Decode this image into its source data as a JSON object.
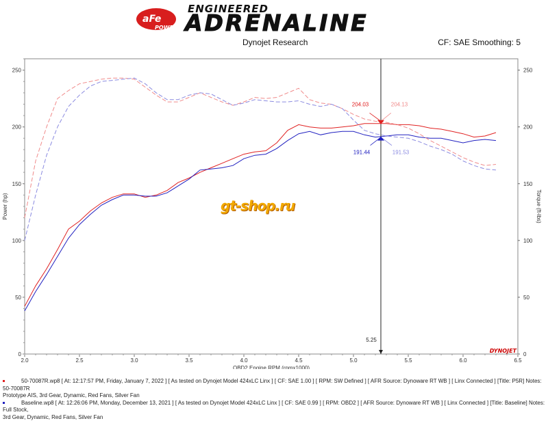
{
  "header": {
    "brand_small": "aFe",
    "brand_power": "POWER",
    "brand_top": "ENGINEERED",
    "brand_main": "ADRENALINE",
    "subtitle_left": "Dynojet Research",
    "subtitle_right": "CF: SAE Smoothing: 5"
  },
  "watermark": "gt-shop.ru",
  "dynojet_logo": "DYNOJET",
  "chart_data": {
    "type": "line",
    "xlabel": "OBD2 Engine RPM (rpmx1000)",
    "ylabel_left": "Power (hp)",
    "ylabel_right": "Torque (ft-lbs)",
    "xlim": [
      2.0,
      6.5
    ],
    "ylim": [
      0,
      260
    ],
    "x_ticks": [
      "2.0",
      "2.5",
      "3.0",
      "3.5",
      "4.0",
      "4.5",
      "5.0",
      "5.5",
      "6.0",
      "6.5"
    ],
    "y_ticks": [
      "0",
      "50",
      "100",
      "150",
      "200",
      "250"
    ],
    "cursor": {
      "x": 5.25,
      "label": "5.25"
    },
    "annotations": [
      {
        "text": "204.03",
        "color": "#e02020"
      },
      {
        "text": "204.13",
        "color": "#f08a8a"
      },
      {
        "text": "191.44",
        "color": "#2020c0"
      },
      {
        "text": "191.53",
        "color": "#8a8ae0"
      }
    ],
    "series": [
      {
        "name": "50-70087R",
        "kind": "power",
        "color": "#e02020",
        "dashed": false,
        "x": [
          2.0,
          2.1,
          2.2,
          2.3,
          2.4,
          2.5,
          2.6,
          2.7,
          2.8,
          2.9,
          3.0,
          3.1,
          3.2,
          3.3,
          3.4,
          3.5,
          3.6,
          3.7,
          3.8,
          3.9,
          4.0,
          4.1,
          4.2,
          4.3,
          4.4,
          4.5,
          4.6,
          4.7,
          4.8,
          4.9,
          5.0,
          5.1,
          5.2,
          5.3,
          5.4,
          5.5,
          5.6,
          5.7,
          5.8,
          5.9,
          6.0,
          6.1,
          6.2,
          6.3
        ],
        "values": [
          42,
          60,
          75,
          92,
          110,
          117,
          126,
          133,
          138,
          141,
          141,
          138,
          140,
          144,
          151,
          155,
          160,
          164,
          168,
          172,
          176,
          178,
          179,
          186,
          197,
          202,
          200,
          199,
          199,
          200,
          201,
          203,
          203,
          203,
          202,
          202,
          201,
          199,
          198,
          196,
          194,
          191,
          192,
          195
        ]
      },
      {
        "name": "Baseline",
        "kind": "power",
        "color": "#2020c0",
        "dashed": false,
        "x": [
          2.0,
          2.1,
          2.2,
          2.3,
          2.4,
          2.5,
          2.6,
          2.7,
          2.8,
          2.9,
          3.0,
          3.1,
          3.2,
          3.3,
          3.4,
          3.5,
          3.6,
          3.7,
          3.8,
          3.9,
          4.0,
          4.1,
          4.2,
          4.3,
          4.4,
          4.5,
          4.6,
          4.7,
          4.8,
          4.9,
          5.0,
          5.1,
          5.2,
          5.3,
          5.4,
          5.5,
          5.6,
          5.7,
          5.8,
          5.9,
          6.0,
          6.1,
          6.2,
          6.3
        ],
        "values": [
          38,
          55,
          70,
          86,
          102,
          114,
          123,
          131,
          136,
          140,
          140,
          139,
          139,
          142,
          148,
          154,
          162,
          163,
          164,
          166,
          172,
          175,
          176,
          181,
          188,
          194,
          196,
          193,
          195,
          196,
          196,
          193,
          191,
          192,
          193,
          193,
          191,
          190,
          190,
          188,
          186,
          188,
          189,
          188
        ]
      },
      {
        "name": "50-70087R",
        "kind": "torque",
        "color": "#f08a8a",
        "dashed": true,
        "x": [
          2.0,
          2.1,
          2.2,
          2.3,
          2.4,
          2.5,
          2.6,
          2.7,
          2.8,
          2.9,
          3.0,
          3.1,
          3.2,
          3.3,
          3.4,
          3.5,
          3.6,
          3.7,
          3.8,
          3.9,
          4.0,
          4.1,
          4.2,
          4.3,
          4.4,
          4.5,
          4.6,
          4.7,
          4.8,
          4.9,
          5.0,
          5.1,
          5.2,
          5.3,
          5.4,
          5.5,
          5.6,
          5.7,
          5.8,
          5.9,
          6.0,
          6.1,
          6.2,
          6.3
        ],
        "values": [
          120,
          170,
          200,
          225,
          232,
          238,
          240,
          242,
          243,
          243,
          242,
          235,
          228,
          222,
          222,
          226,
          230,
          226,
          222,
          219,
          222,
          226,
          225,
          226,
          230,
          234,
          224,
          221,
          220,
          216,
          211,
          207,
          205,
          204,
          202,
          199,
          194,
          188,
          183,
          178,
          173,
          169,
          166,
          167
        ]
      },
      {
        "name": "Baseline",
        "kind": "torque",
        "color": "#8a8ae0",
        "dashed": true,
        "x": [
          2.0,
          2.1,
          2.2,
          2.3,
          2.4,
          2.5,
          2.6,
          2.7,
          2.8,
          2.9,
          3.0,
          3.1,
          3.2,
          3.3,
          3.4,
          3.5,
          3.6,
          3.7,
          3.8,
          3.9,
          4.0,
          4.1,
          4.2,
          4.3,
          4.4,
          4.5,
          4.6,
          4.7,
          4.8,
          4.9,
          5.0,
          5.1,
          5.2,
          5.3,
          5.4,
          5.5,
          5.6,
          5.7,
          5.8,
          5.9,
          6.0,
          6.1,
          6.2,
          6.3
        ],
        "values": [
          100,
          140,
          175,
          200,
          218,
          228,
          236,
          240,
          241,
          242,
          243,
          238,
          230,
          224,
          224,
          228,
          230,
          229,
          224,
          219,
          221,
          224,
          223,
          222,
          222,
          223,
          220,
          218,
          220,
          216,
          206,
          197,
          194,
          192,
          191,
          190,
          187,
          183,
          180,
          176,
          170,
          166,
          163,
          162
        ]
      }
    ]
  },
  "footer": {
    "run1": "50-70087R.wp8 [ At: 12:17:57 PM, Friday, January 7, 2022 ] [ As tested on Dynojet Model 424xLC Linx ] [ CF: SAE 1.00 ] [ RPM: SW Defined ] [ AFR Source: Dynoware RT WB ] [ Linx Connected ] [Title: P5R] Notes: 50-70087R",
    "run1_cont": "Prototype AIS, 3rd Gear, Dynamic, Red Fans, Silver Fan",
    "run2": "Baseline.wp8 [ At: 12:26:06 PM, Monday, December 13, 2021 ] [ As tested on Dynojet Model 424xLC Linx ] [ CF: SAE 0.99 ] [ RPM: OBD2 ] [ AFR Source: Dynoware RT WB ] [ Linx Connected ] [Title: Baseline] Notes: Full Stock,",
    "run2_cont": "3rd Gear, Dynamic, Red Fans, Silver Fan",
    "run1_color": "#e02020",
    "run2_color": "#2020c0"
  }
}
